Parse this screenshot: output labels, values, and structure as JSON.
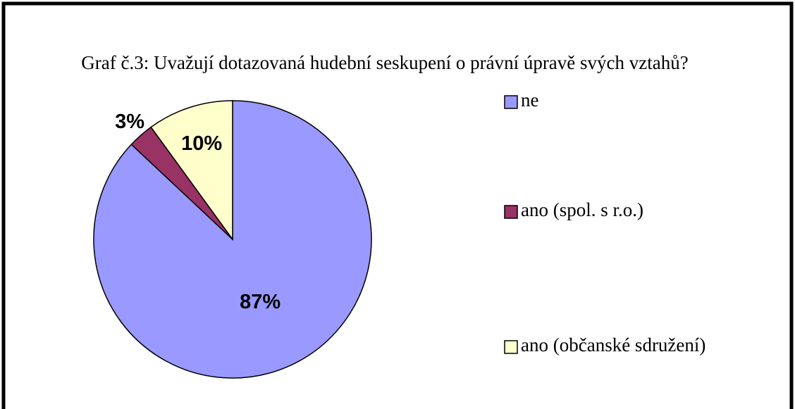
{
  "chart_data": {
    "type": "pie",
    "title": "Graf č.3: Uvažují dotazovaná hudební seskupení o právní úpravě svých vztahů?",
    "categories": [
      "ne",
      "ano (spol. s r.o.)",
      "ano (občanské sdružení)"
    ],
    "values": [
      87,
      3,
      10
    ],
    "value_labels": [
      "87%",
      "3%",
      "10%"
    ],
    "colors": [
      "#9999ff",
      "#993366",
      "#ffffcc"
    ],
    "legend": "right"
  }
}
